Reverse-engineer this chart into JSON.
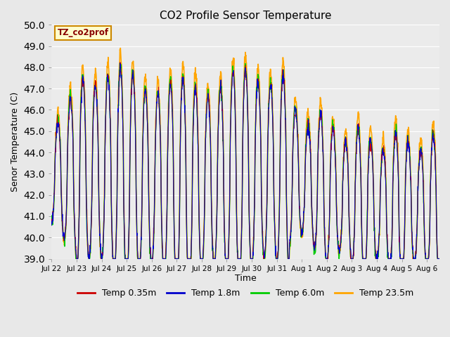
{
  "title": "CO2 Profile Sensor Temperature",
  "ylabel": "Senor Temperature (C)",
  "xlabel": "Time",
  "annotation_text": "TZ_co2prof",
  "annotation_bg": "#FFFFCC",
  "annotation_edge": "#CC8800",
  "annotation_text_color": "#880000",
  "ylim": [
    39.0,
    50.0
  ],
  "yticks": [
    39.0,
    40.0,
    41.0,
    42.0,
    43.0,
    44.0,
    45.0,
    46.0,
    47.0,
    48.0,
    49.0,
    50.0
  ],
  "fig_bg": "#E8E8E8",
  "plot_bg": "#EBEBEB",
  "grid_color": "#FFFFFF",
  "colors": {
    "Temp 0.35m": "#CC0000",
    "Temp 1.8m": "#0000CC",
    "Temp 6.0m": "#00CC00",
    "Temp 23.5m": "#FFA500"
  },
  "legend_labels": [
    "Temp 0.35m",
    "Temp 1.8m",
    "Temp 6.0m",
    "Temp 23.5m"
  ],
  "xtick_labels": [
    "Jul 22",
    "Jul 23",
    "Jul 24",
    "Jul 25",
    "Jul 26",
    "Jul 27",
    "Jul 28",
    "Jul 29",
    "Jul 30",
    "Jul 31",
    "Aug 1",
    "Aug 2",
    "Aug 3",
    "Aug 4",
    "Aug 5",
    "Aug 6"
  ],
  "num_days": 15.5,
  "samples_per_day": 96,
  "cycles_per_day": 2.0,
  "base_mean": 42.8,
  "base_amplitude": 3.5
}
